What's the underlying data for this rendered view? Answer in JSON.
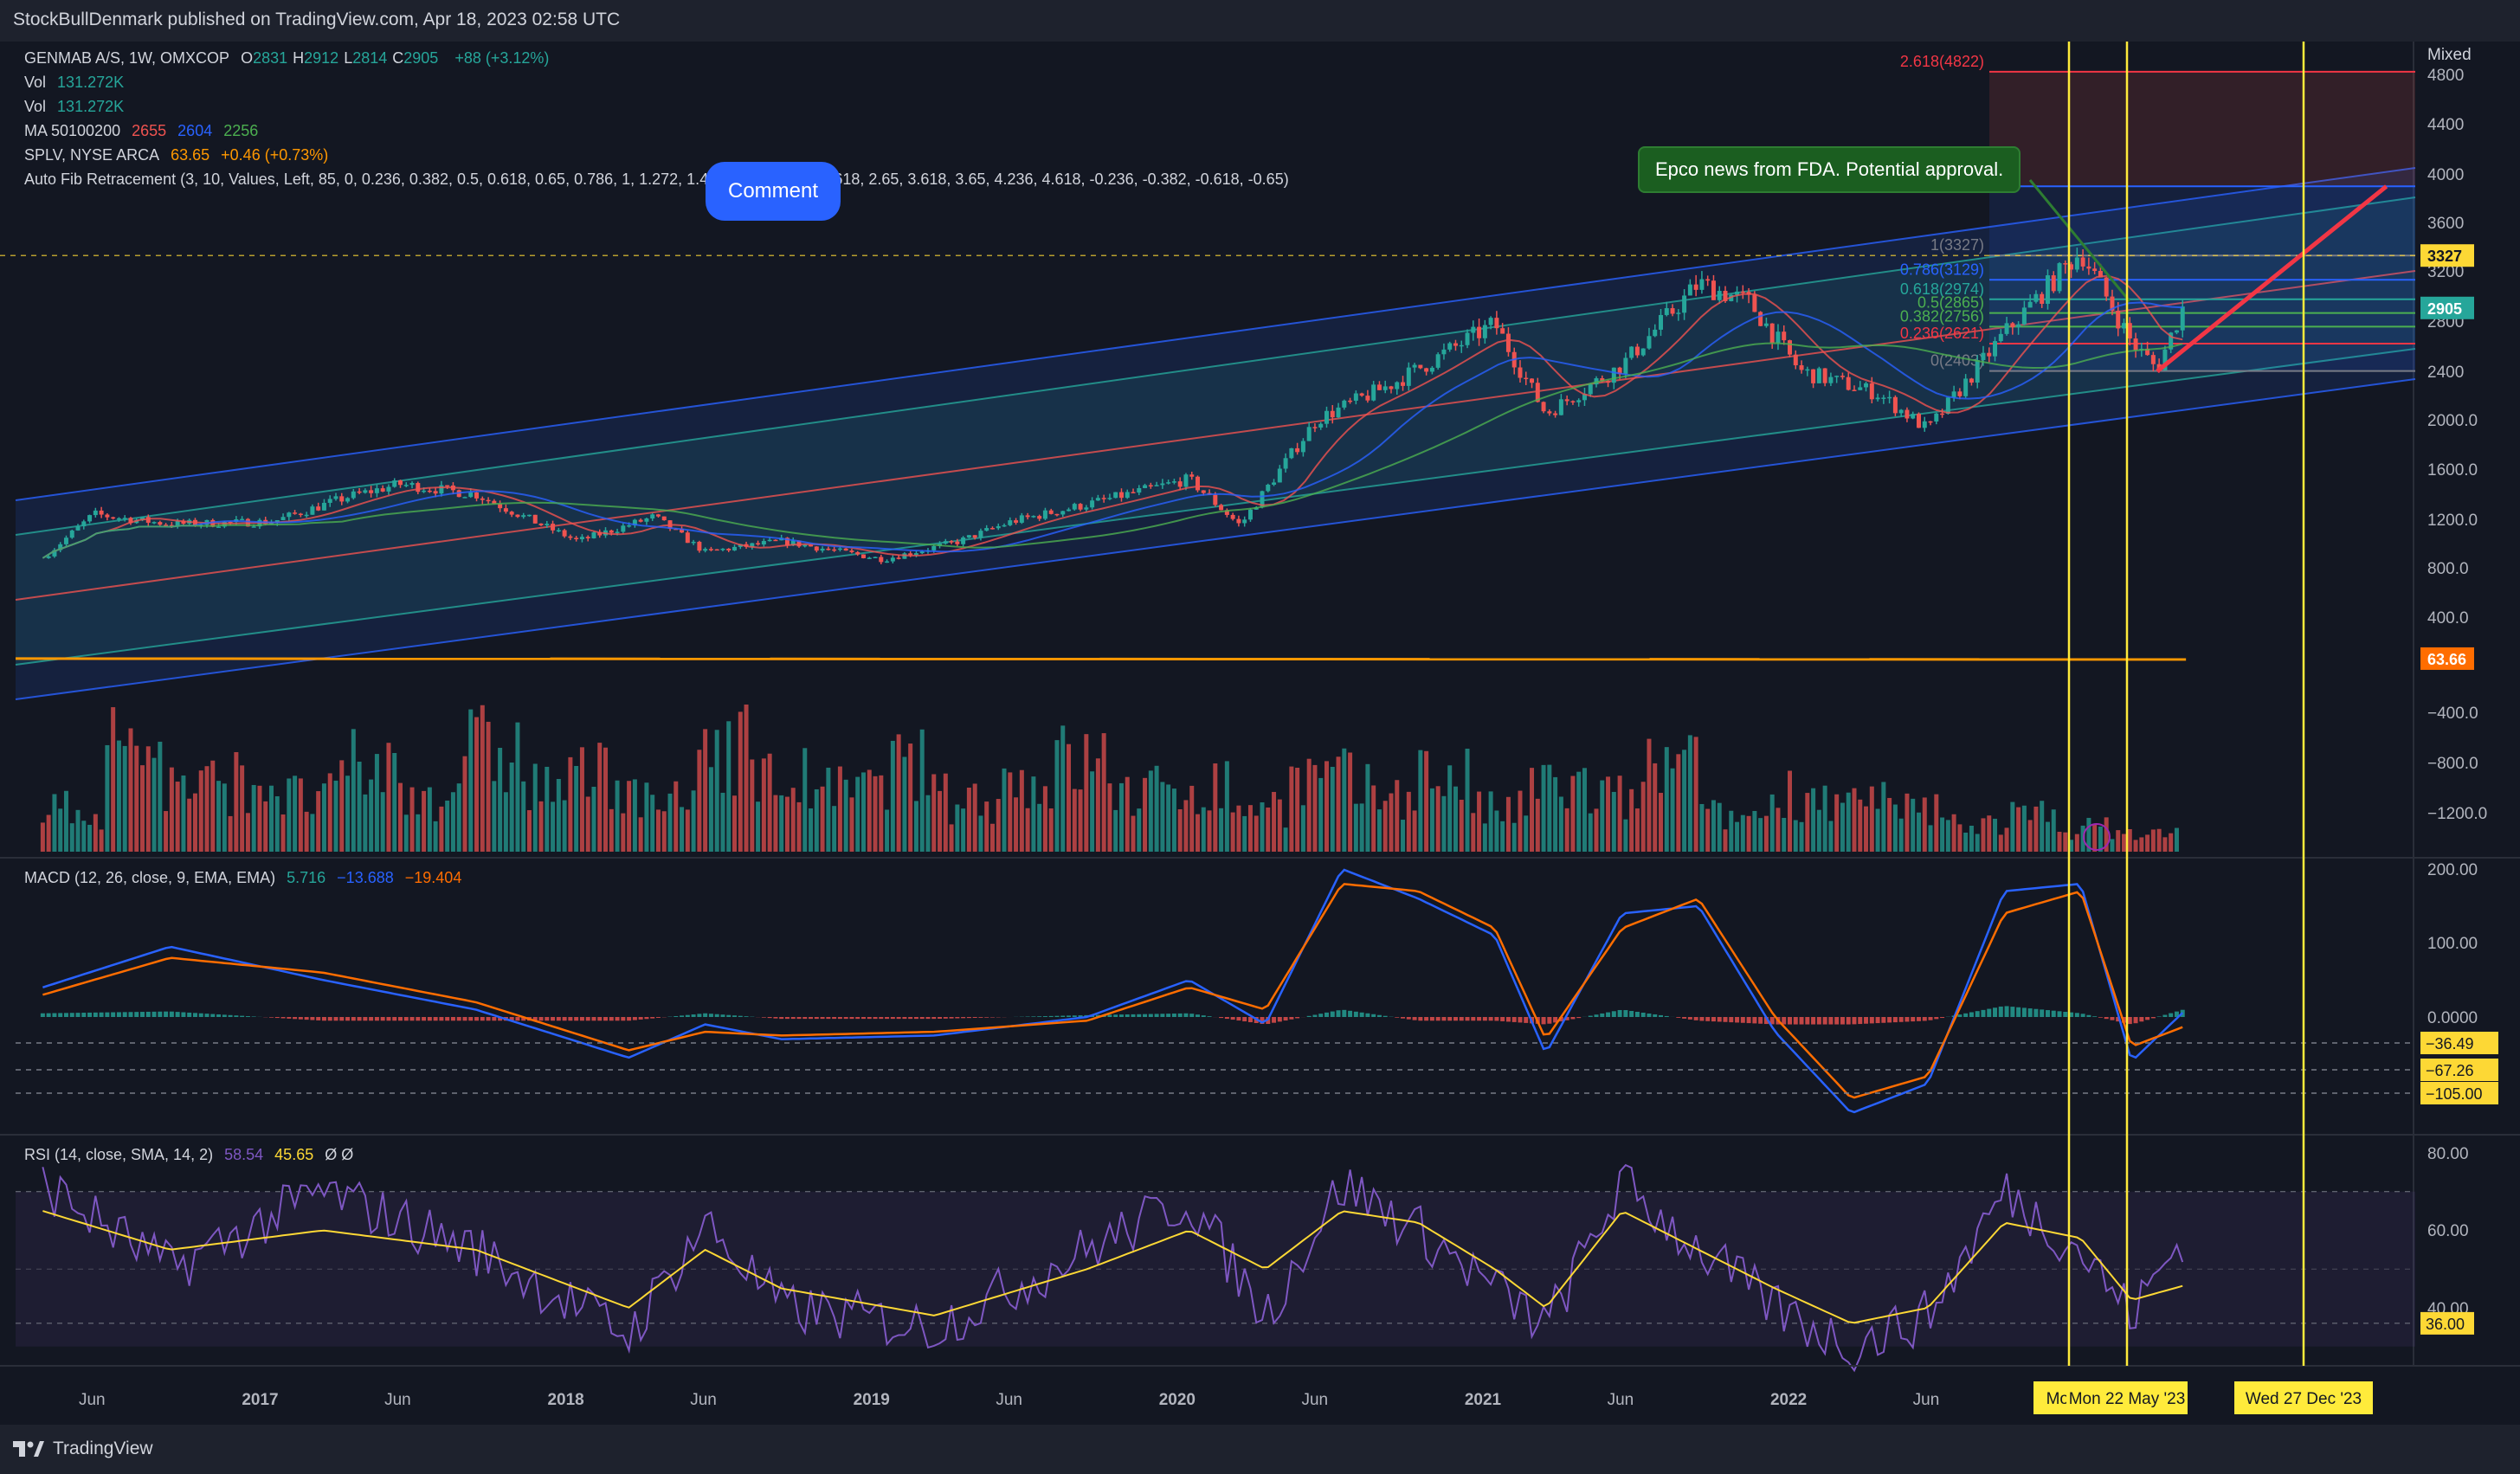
{
  "header": {
    "publisher_line": "StockBullDenmark published on TradingView.com, Apr 18, 2023 02:58 UTC"
  },
  "footer": {
    "brand": "TradingView"
  },
  "comment_button": "Comment",
  "annotation_note": "Epco news from FDA. Potential approval.",
  "legend": {
    "symbol": "GENMAB A/S, 1W, OMXCOP",
    "ohlc": [
      {
        "k": "O",
        "v": "2831"
      },
      {
        "k": "H",
        "v": "2912"
      },
      {
        "k": "L",
        "v": "2814"
      },
      {
        "k": "C",
        "v": "2905"
      }
    ],
    "change": "+88 (+3.12%)",
    "vol1_label": "Vol",
    "vol1_value": "131.272K",
    "vol2_label": "Vol",
    "vol2_value": "131.272K",
    "ma_label": "MA 50100200",
    "ma_values": [
      "2655",
      "2604",
      "2256"
    ],
    "splv_label": "SPLV, NYSE ARCA",
    "splv_value": "63.65",
    "splv_change": "+0.46 (+0.73%)",
    "fib_label": "Auto Fib Retracement (3, 10, Values, Left, 85, 0, 0.236, 0.382, 0.5, 0.618, 0.65, 0.786, 1, 1.272, 1.414, 1.618, 1.65, 2.618, 2.65, 3.618, 3.65, 4.236, 4.618, -0.236, -0.382, -0.618, -0.65)",
    "macd_label": "MACD (12, 26, close, 9, EMA, EMA)",
    "macd_values": [
      "5.716",
      "−13.688",
      "−19.404"
    ],
    "rsi_label": "RSI (14, close, SMA, 14, 2)",
    "rsi_values": [
      "58.54",
      "45.65"
    ],
    "rsi_extra": "Ø  Ø"
  },
  "colors": {
    "background": "#131722",
    "up": "#26a69a",
    "down": "#ef5350",
    "channel": "#2962ff",
    "ma50": "#ef5350",
    "ma100": "#2962ff",
    "ma200": "#4caf50",
    "splv": "#ff9800",
    "macd": "#2962ff",
    "signal": "#ff6d00",
    "rsi": "#7e57c2",
    "rsi_ma": "#fdd835",
    "vline": "#ffeb3b",
    "projection": "#f23645"
  },
  "chart_data": {
    "type": "line",
    "price_axis": {
      "scale_mode": "Mixed",
      "ticks": [
        "4800",
        "4400",
        "4000",
        "3600",
        "3200",
        "2800",
        "2400",
        "2000.0",
        "1600.0",
        "1200.0",
        "800.0",
        "400.0",
        "−400.0",
        "−800.0",
        "−1200.0"
      ],
      "badges": [
        {
          "label": "3327",
          "color": "#fdd835"
        },
        {
          "label": "2905",
          "color": "#26a69a"
        },
        {
          "label": "63.66",
          "color": "#ff6d00"
        }
      ]
    },
    "price_series": {
      "name": "GENMAB A/S, 1W, OMXCOP",
      "x": [
        "2016-04",
        "2016-06",
        "2016-09",
        "2017-01",
        "2017-04",
        "2017-06",
        "2017-09",
        "2018-01",
        "2018-04",
        "2018-06",
        "2018-09",
        "2019-01",
        "2019-04",
        "2019-06",
        "2019-09",
        "2020-01",
        "2020-03",
        "2020-06",
        "2020-09",
        "2021-01",
        "2021-03",
        "2021-06",
        "2021-09",
        "2021-11",
        "2022-01",
        "2022-04",
        "2022-06",
        "2022-09",
        "2022-12",
        "2023-02",
        "2023-03",
        "2023-04"
      ],
      "values": [
        880,
        1240,
        1160,
        1180,
        1380,
        1480,
        1400,
        1020,
        1220,
        930,
        1020,
        870,
        1020,
        1180,
        1320,
        1520,
        1150,
        2000,
        2300,
        2780,
        2050,
        2450,
        3100,
        2950,
        2400,
        2220,
        1920,
        2700,
        3360,
        2630,
        2420,
        2905
      ]
    },
    "fib_levels": [
      {
        "ratio": "2.618",
        "price": 4822,
        "label": "2.618(4822)"
      },
      {
        "ratio": "1.618",
        "price": 3898,
        "label": "1.618(3898)"
      },
      {
        "ratio": "1",
        "price": 3327,
        "label": "1(3327)"
      },
      {
        "ratio": "0.786",
        "price": 3129,
        "label": "0.786(3129)"
      },
      {
        "ratio": "0.618",
        "price": 2974,
        "label": "0.618(2974)"
      },
      {
        "ratio": "0.5",
        "price": 2865,
        "label": "0.5(2865)"
      },
      {
        "ratio": "0.382",
        "price": 2756,
        "label": "0.382(2756)"
      },
      {
        "ratio": "0.236",
        "price": 2621,
        "label": "0.236(2621)"
      },
      {
        "ratio": "0",
        "price": 2403,
        "label": "0(2403)"
      }
    ],
    "projection": {
      "from": {
        "date": "2023-03",
        "price": 2400
      },
      "to": {
        "date": "2023-12",
        "price": 3898
      }
    },
    "splv": {
      "name": "SPLV, NYSE ARCA",
      "value": 63.65
    },
    "volume": {
      "name": "Vol",
      "values": [
        0.35,
        0.9,
        0.55,
        0.6,
        0.45,
        0.7,
        0.5,
        0.85,
        0.55,
        0.65,
        0.4,
        0.95,
        0.6,
        0.5,
        0.7,
        0.45,
        0.6,
        0.75,
        0.5,
        0.55,
        0.4,
        0.6,
        0.5,
        0.65,
        0.35,
        0.55,
        0.45,
        0.7,
        0.3,
        0.5,
        0.4,
        0.35,
        0.25,
        0.3,
        0.2,
        0.15
      ]
    },
    "macd": {
      "axis_ticks": [
        "200.00",
        "100.00",
        "0.0000"
      ],
      "badges": [
        "−36.49",
        "−67.26",
        "−105.00"
      ],
      "x": [
        "2016-04",
        "2016-09",
        "2017-03",
        "2017-09",
        "2018-03",
        "2018-06",
        "2018-09",
        "2019-03",
        "2019-09",
        "2020-01",
        "2020-04",
        "2020-07",
        "2020-10",
        "2021-01",
        "2021-03",
        "2021-06",
        "2021-09",
        "2021-12",
        "2022-03",
        "2022-06",
        "2022-09",
        "2022-12",
        "2023-02",
        "2023-04"
      ],
      "macd": [
        40,
        95,
        50,
        10,
        -55,
        -10,
        -30,
        -25,
        0,
        50,
        -10,
        200,
        160,
        110,
        -50,
        140,
        150,
        -20,
        -130,
        -90,
        170,
        180,
        -60,
        5.716
      ],
      "signal": [
        30,
        80,
        60,
        20,
        -45,
        -20,
        -25,
        -20,
        -5,
        40,
        10,
        180,
        170,
        120,
        -30,
        120,
        160,
        0,
        -110,
        -80,
        140,
        170,
        -40,
        -13.688
      ]
    },
    "rsi": {
      "axis_ticks": [
        "80.00",
        "60.00",
        "40.00"
      ],
      "badges": [
        "36.00"
      ],
      "x": [
        "2016-04",
        "2016-09",
        "2017-03",
        "2017-09",
        "2018-03",
        "2018-06",
        "2018-09",
        "2019-03",
        "2019-09",
        "2020-01",
        "2020-04",
        "2020-07",
        "2020-10",
        "2021-01",
        "2021-03",
        "2021-06",
        "2021-09",
        "2021-12",
        "2022-03",
        "2022-06",
        "2022-09",
        "2022-12",
        "2023-02",
        "2023-04"
      ],
      "rsi": [
        72,
        50,
        70,
        55,
        33,
        62,
        40,
        35,
        55,
        68,
        38,
        72,
        60,
        45,
        35,
        72,
        55,
        40,
        30,
        38,
        70,
        55,
        38,
        58.54
      ],
      "rsi_ma": [
        65,
        55,
        60,
        55,
        40,
        55,
        45,
        38,
        50,
        60,
        50,
        65,
        62,
        50,
        40,
        65,
        55,
        45,
        36,
        40,
        62,
        58,
        42,
        45.65
      ]
    },
    "time_axis": [
      "Jun",
      "2017",
      "Jun",
      "2018",
      "Jun",
      "2019",
      "Jun",
      "2020",
      "Jun",
      "2021",
      "Jun",
      "2022",
      "Jun"
    ],
    "vertical_markers": [
      {
        "label": "Mon 1",
        "date": "2023-05-01"
      },
      {
        "label": "Mon 22 May '23",
        "date": "2023-05-22"
      },
      {
        "label": "Wed 27 Dec '23",
        "date": "2023-12-27"
      }
    ]
  }
}
